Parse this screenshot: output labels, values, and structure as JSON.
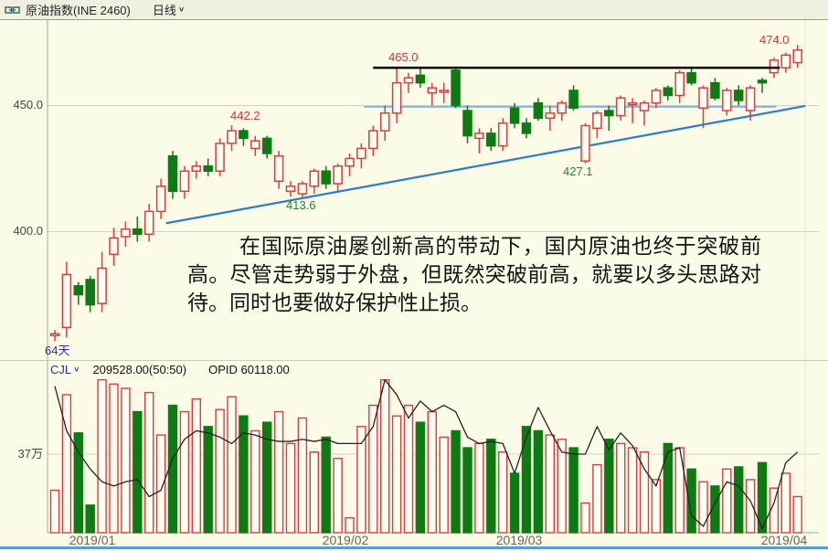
{
  "header": {
    "title": "原油指数(INE 2460)",
    "period": "日线"
  },
  "icons": {
    "chevron_down": "∨"
  },
  "note": {
    "text": "在国际原油屡创新高的带动下，国内原油也终于突破前高。尽管走势弱于外盘，但既然突破前高，就要以多头思路对待。同时也要做好保护性止损。"
  },
  "price_pane": {
    "day_count_label": "64天",
    "tick_labels": [
      "450.0",
      "400.0"
    ],
    "annotations": {
      "resistance": "465.0",
      "breakout_high": "474.0",
      "peak": "442.2",
      "trend_low": "413.6",
      "pullback_low": "427.1"
    }
  },
  "volume_pane": {
    "indicator_name": "CJL",
    "indicator_value": "209528.00(50:50)",
    "opid_label": "OPID 60118.00",
    "tick_label": "37万"
  },
  "x_axis": {
    "tick_labels": [
      "2019/01",
      "2019/02",
      "2019/03",
      "2019/04"
    ]
  },
  "colors": {
    "background": "#FCFBE8",
    "header_bg": "#F1EFDF",
    "up": "#DE3C3C",
    "down": "#0E7A12",
    "hollow_fill": "#FFFEF2",
    "trendline": "#2B7BD4",
    "support_line": "#7FB8E8",
    "resistance_line": "#000000",
    "opid_line": "#222222",
    "grid": "#D2D1C2",
    "axis": "#A8A89C",
    "label_red": "#D53535",
    "label_green": "#1E8A1E",
    "label_blue": "#2A2AC0",
    "bottom_bar": "#4FA0E0"
  },
  "chart_data": {
    "type": "candlestick+volume",
    "x_unit": "trading_day",
    "day_count": 64,
    "date_range": [
      "2019/01",
      "2019/04"
    ],
    "price_axis": {
      "ticks": [
        450,
        400
      ],
      "visible_range": [
        350,
        484
      ]
    },
    "volume_axis": {
      "ticks_wan": [
        37
      ]
    },
    "candles_ohlc": [
      [
        359.5,
        361,
        356.5,
        359.5
      ],
      [
        362,
        388,
        358,
        383
      ],
      [
        378.5,
        380,
        371,
        375
      ],
      [
        381,
        382.5,
        368,
        371
      ],
      [
        371.5,
        392,
        368,
        385.5
      ],
      [
        391,
        401.5,
        386.5,
        397.5
      ],
      [
        398,
        404,
        394,
        401
      ],
      [
        401,
        406,
        396,
        399
      ],
      [
        399,
        411,
        396,
        408
      ],
      [
        408,
        421,
        405,
        418
      ],
      [
        430,
        432,
        413,
        416
      ],
      [
        416,
        426,
        413,
        424
      ],
      [
        424,
        428,
        421,
        426
      ],
      [
        426,
        429,
        422,
        424
      ],
      [
        424,
        437,
        422,
        435
      ],
      [
        435,
        442.2,
        432,
        440
      ],
      [
        440,
        441,
        434,
        437
      ],
      [
        433,
        438,
        430,
        436
      ],
      [
        437,
        438,
        429,
        431
      ],
      [
        420,
        432,
        417,
        430
      ],
      [
        416,
        420,
        413.8,
        418
      ],
      [
        415,
        420,
        413.6,
        419
      ],
      [
        418,
        425,
        415,
        424
      ],
      [
        424,
        426,
        417,
        419
      ],
      [
        419,
        427,
        416,
        426
      ],
      [
        426,
        431,
        422,
        429
      ],
      [
        429,
        435,
        425,
        433
      ],
      [
        433,
        442,
        430,
        440
      ],
      [
        440,
        450,
        436,
        447
      ],
      [
        447,
        465,
        443,
        459
      ],
      [
        459,
        463,
        455,
        461
      ],
      [
        462,
        465,
        457,
        459
      ],
      [
        455,
        459,
        450,
        457
      ],
      [
        456,
        459,
        451,
        456
      ],
      [
        464,
        465,
        449,
        450
      ],
      [
        448,
        450,
        435,
        438
      ],
      [
        437,
        441,
        431,
        439
      ],
      [
        439,
        441,
        432,
        434
      ],
      [
        434,
        445,
        432,
        443
      ],
      [
        449,
        451,
        441,
        443
      ],
      [
        443,
        445,
        437,
        439
      ],
      [
        451,
        453,
        444,
        445
      ],
      [
        445,
        450,
        440,
        447
      ],
      [
        447,
        452,
        444,
        451
      ],
      [
        456,
        458,
        448,
        449
      ],
      [
        428,
        443,
        427.1,
        442
      ],
      [
        441,
        448,
        437,
        447
      ],
      [
        448,
        450,
        440,
        446
      ],
      [
        446,
        454,
        444,
        453
      ],
      [
        451,
        453,
        443,
        451
      ],
      [
        448,
        452,
        442,
        451
      ],
      [
        451,
        457,
        449,
        456
      ],
      [
        457,
        458,
        452,
        454
      ],
      [
        454,
        464,
        451,
        463
      ],
      [
        463,
        465,
        458,
        459
      ],
      [
        449,
        458,
        441,
        457
      ],
      [
        459,
        461,
        452,
        453
      ],
      [
        448,
        457,
        446,
        456
      ],
      [
        456,
        458,
        450,
        452
      ],
      [
        448,
        458,
        444,
        457
      ],
      [
        460,
        461,
        455,
        459
      ],
      [
        463,
        469,
        461,
        468
      ],
      [
        465,
        471,
        463,
        470
      ],
      [
        467,
        474,
        465,
        472
      ]
    ],
    "volume_wan": [
      20,
      65,
      47,
      13,
      72,
      70,
      68,
      57,
      66,
      46,
      60,
      57,
      63,
      50,
      58,
      64,
      55,
      48,
      52,
      57,
      42,
      54,
      38,
      45,
      35,
      7,
      50,
      60,
      72,
      55,
      60,
      52,
      57,
      45,
      48,
      40,
      42,
      44,
      38,
      28,
      50,
      48,
      46,
      44,
      40,
      14,
      32,
      44,
      42,
      40,
      38,
      25,
      42,
      40,
      30,
      24,
      22,
      30,
      31,
      25,
      33,
      21,
      28,
      17
    ],
    "opid_line_wan": [
      69,
      48,
      38,
      30,
      24,
      22,
      24,
      25,
      17,
      20,
      35,
      44,
      48,
      47,
      45,
      42,
      47,
      46,
      44,
      43,
      43,
      44,
      43,
      44,
      42,
      42,
      42,
      50,
      72,
      65,
      54,
      62,
      57,
      60,
      57,
      45,
      42,
      43,
      42,
      28,
      45,
      59,
      48,
      38,
      37,
      37,
      50,
      39,
      47,
      41,
      30,
      22,
      38,
      40,
      8,
      3,
      14,
      24,
      22,
      15,
      2,
      14,
      33,
      38
    ],
    "overlays": {
      "resistance_price": 465.0,
      "resistance_span_days": [
        27,
        61.5
      ],
      "support_price": 449.5,
      "support_span_days": [
        26.2,
        61.2
      ],
      "trendline_days_prices": [
        [
          9.5,
          403.4
        ],
        [
          63.6,
          449.8
        ]
      ]
    }
  }
}
